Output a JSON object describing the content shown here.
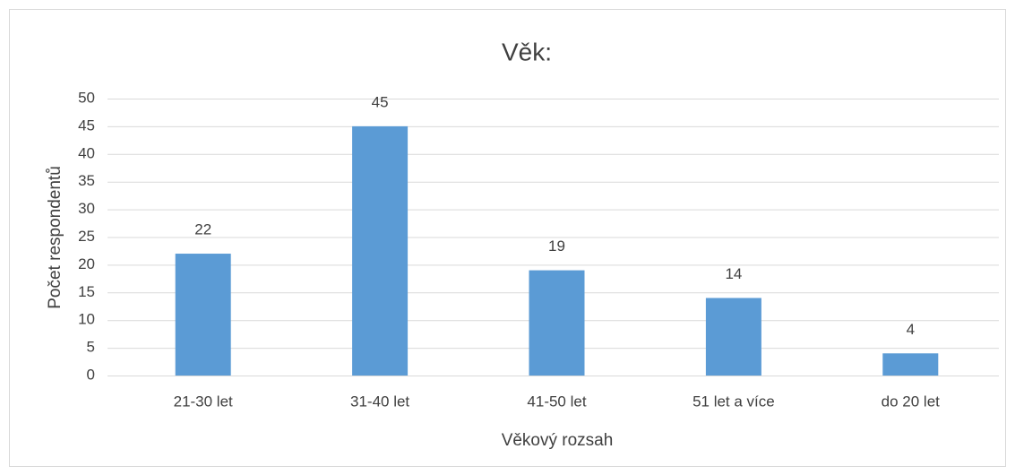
{
  "chart_data": {
    "type": "bar",
    "title": "Věk:",
    "xlabel": "Věkový rozsah",
    "ylabel": "Počet respondentů",
    "categories": [
      "21-30 let",
      "31-40 let",
      "41-50 let",
      "51 let a více",
      "do 20 let"
    ],
    "values": [
      22,
      45,
      19,
      14,
      4
    ],
    "color": "#5b9bd5",
    "ylim": [
      0,
      50
    ],
    "yticks": [
      0,
      5,
      10,
      15,
      20,
      25,
      30,
      35,
      40,
      45,
      50
    ],
    "grid": true
  }
}
